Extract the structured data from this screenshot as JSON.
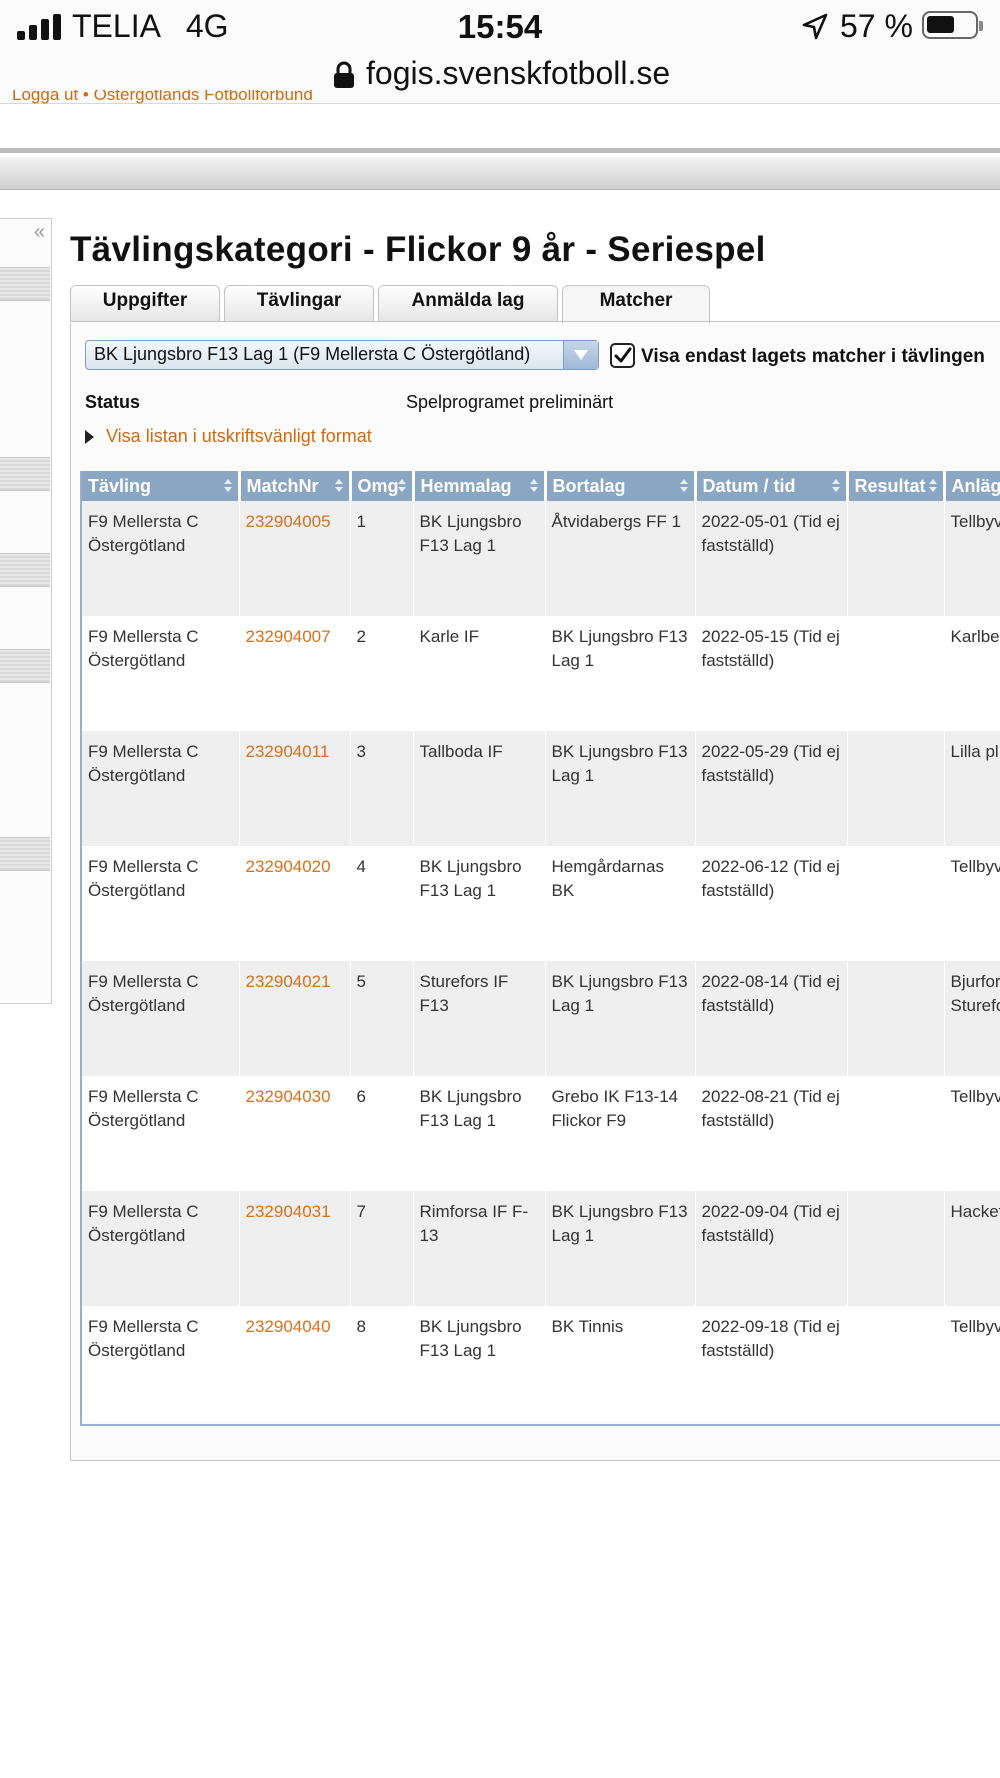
{
  "status_bar": {
    "carrier": "TELIA   4G",
    "time": "15:54",
    "battery_pct": "57 %"
  },
  "browser": {
    "url": "fogis.svenskfotboll.se"
  },
  "breadcrumb": "Logga ut  •  Östergötlands Fotbollförbund",
  "page": {
    "title": "Tävlingskategori - Flickor 9 år - Seriespel"
  },
  "tabs": [
    {
      "label": "Uppgifter"
    },
    {
      "label": "Tävlingar"
    },
    {
      "label": "Anmälda lag"
    },
    {
      "label": "Matcher"
    }
  ],
  "filter": {
    "team_select": "BK Ljungsbro F13 Lag 1 (F9 Mellersta C Östergötland)",
    "checkbox_label": "Visa endast lagets matcher i tävlingen",
    "checkbox_checked": true
  },
  "status": {
    "label": "Status",
    "value": "Spelprogramet preliminärt"
  },
  "print_link": "Visa listan i utskriftsvänligt format",
  "table": {
    "headers": [
      "Tävling",
      "MatchNr",
      "Omg",
      "Hemmalag",
      "Bortalag",
      "Datum / tid",
      "Resultat",
      "Anläggning"
    ],
    "rows": [
      {
        "tavling": "F9 Mellersta C Östergötland",
        "matchnr": "232904005",
        "omg": "1",
        "hemma": "BK Ljungsbro F13 Lag 1",
        "borta": "Åtvidabergs FF 1",
        "datum": "2022-05-01 (Tid ej fastställd)",
        "resultat": "",
        "anl": "Tellbyvallen"
      },
      {
        "tavling": "F9 Mellersta C Östergötland",
        "matchnr": "232904007",
        "omg": "2",
        "hemma": "Karle IF",
        "borta": "BK Ljungsbro F13 Lag 1",
        "datum": "2022-05-15 (Tid ej fastställd)",
        "resultat": "",
        "anl": "Karlberg"
      },
      {
        "tavling": "F9 Mellersta C Östergötland",
        "matchnr": "232904011",
        "omg": "3",
        "hemma": "Tallboda IF",
        "borta": "BK Ljungsbro F13 Lag 1",
        "datum": "2022-05-29 (Tid ej fastställd)",
        "resultat": "",
        "anl": "Lilla pl Tallboda"
      },
      {
        "tavling": "F9 Mellersta C Östergötland",
        "matchnr": "232904020",
        "omg": "4",
        "hemma": "BK Ljungsbro F13 Lag 1",
        "borta": "Hemgårdarnas BK",
        "datum": "2022-06-12 (Tid ej fastställd)",
        "resultat": "",
        "anl": "Tellbyvallen"
      },
      {
        "tavling": "F9 Mellersta C Östergötland",
        "matchnr": "232904021",
        "omg": "5",
        "hemma": "Sturefors IF F13",
        "borta": "BK Ljungsbro F13 Lag 1",
        "datum": "2022-08-14 (Tid ej fastställd)",
        "resultat": "",
        "anl": "Bjurfors Sturefors"
      },
      {
        "tavling": "F9 Mellersta C Östergötland",
        "matchnr": "232904030",
        "omg": "6",
        "hemma": "BK Ljungsbro F13 Lag 1",
        "borta": "Grebo IK F13-14 Flickor F9",
        "datum": "2022-08-21 (Tid ej fastställd)",
        "resultat": "",
        "anl": "Tellbyvallen"
      },
      {
        "tavling": "F9 Mellersta C Östergötland",
        "matchnr": "232904031",
        "omg": "7",
        "hemma": "Rimforsa IF F-13",
        "borta": "BK Ljungsbro F13 Lag 1",
        "datum": "2022-09-04 (Tid ej fastställd)",
        "resultat": "",
        "anl": "Hackefors"
      },
      {
        "tavling": "F9 Mellersta C Östergötland",
        "matchnr": "232904040",
        "omg": "8",
        "hemma": "BK Ljungsbro F13 Lag 1",
        "borta": "BK Tinnis",
        "datum": "2022-09-18 (Tid ej fastställd)",
        "resultat": "",
        "anl": "Tellbyvallen"
      }
    ]
  },
  "colors": {
    "link": "#d9701a",
    "header_bg": "#8ba6c2",
    "row_alt": "#efefef"
  }
}
